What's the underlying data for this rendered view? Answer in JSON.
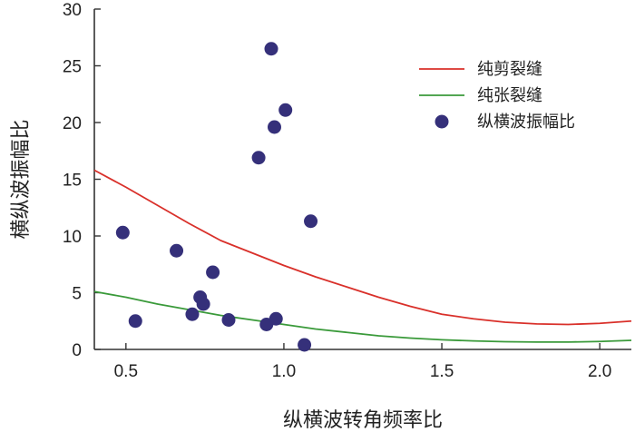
{
  "chart_data": {
    "type": "scatter",
    "xlabel": "纵横波转角频率比",
    "ylabel": "横纵波振幅比",
    "xlim": [
      0.4,
      2.1
    ],
    "ylim": [
      0,
      30
    ],
    "xticks": [
      0.5,
      1.0,
      1.5,
      2.0
    ],
    "xtick_labels": [
      "0.5",
      "1.0",
      "1.5",
      "2.0"
    ],
    "yticks": [
      0,
      5,
      10,
      15,
      20,
      25,
      30
    ],
    "ytick_labels": [
      "0",
      "5",
      "10",
      "15",
      "20",
      "25",
      "30"
    ],
    "grid": false,
    "legend_position": "top-right",
    "series": [
      {
        "name": "纯剪裂缝",
        "kind": "line",
        "color": "#d9302a",
        "x": [
          0.4,
          0.5,
          0.6,
          0.7,
          0.8,
          0.9,
          1.0,
          1.1,
          1.2,
          1.3,
          1.4,
          1.5,
          1.6,
          1.7,
          1.8,
          1.9,
          2.0,
          2.1
        ],
        "y": [
          15.8,
          14.3,
          12.7,
          11.1,
          9.6,
          8.5,
          7.4,
          6.4,
          5.5,
          4.6,
          3.8,
          3.1,
          2.7,
          2.4,
          2.25,
          2.2,
          2.3,
          2.5
        ]
      },
      {
        "name": "纯张裂缝",
        "kind": "line",
        "color": "#3a9a3a",
        "x": [
          0.4,
          0.5,
          0.6,
          0.7,
          0.8,
          0.9,
          1.0,
          1.1,
          1.2,
          1.3,
          1.4,
          1.5,
          1.6,
          1.7,
          1.8,
          1.9,
          2.0,
          2.1
        ],
        "y": [
          5.1,
          4.6,
          4.0,
          3.5,
          3.0,
          2.6,
          2.2,
          1.8,
          1.5,
          1.2,
          1.0,
          0.85,
          0.75,
          0.68,
          0.65,
          0.65,
          0.7,
          0.8
        ]
      },
      {
        "name": "纵横波振幅比",
        "kind": "scatter",
        "color": "#35307a",
        "points": [
          [
            0.49,
            10.3
          ],
          [
            0.53,
            2.5
          ],
          [
            0.66,
            8.7
          ],
          [
            0.71,
            3.1
          ],
          [
            0.735,
            4.6
          ],
          [
            0.745,
            4.0
          ],
          [
            0.775,
            6.8
          ],
          [
            0.825,
            2.6
          ],
          [
            0.92,
            16.9
          ],
          [
            0.945,
            2.2
          ],
          [
            0.96,
            26.5
          ],
          [
            0.97,
            19.6
          ],
          [
            0.975,
            2.7
          ],
          [
            1.005,
            21.1
          ],
          [
            1.065,
            0.4
          ],
          [
            1.085,
            11.3
          ]
        ]
      }
    ]
  }
}
